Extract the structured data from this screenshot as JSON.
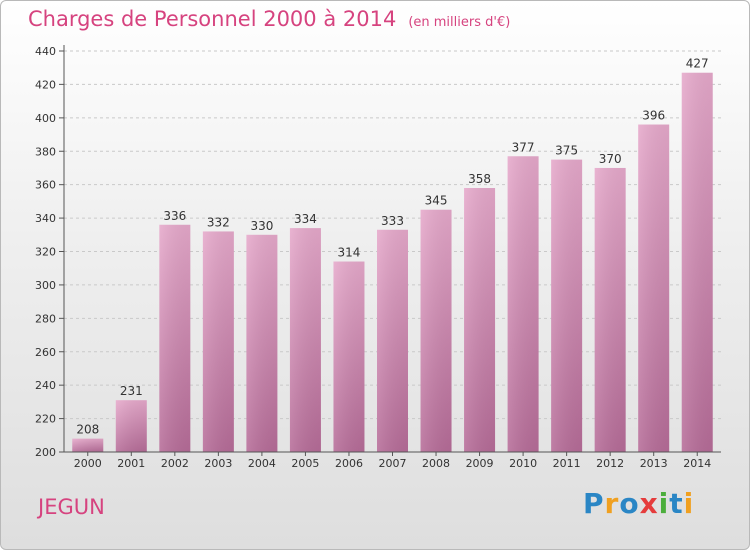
{
  "title": "Charges de Personnel 2000 à 2014",
  "unit": "(en milliers d'€)",
  "city": "JEGUN",
  "logo": {
    "text": "Proxiti",
    "letters": [
      "P",
      "r",
      "o",
      "x",
      "i",
      "t",
      "i"
    ],
    "colors": [
      "#2a86c5",
      "#f0a020",
      "#2a86c5",
      "#e53c3c",
      "#4cae3c",
      "#2a86c5",
      "#f0a020"
    ]
  },
  "colors": {
    "bar": "#d68fb7",
    "accent": "#d6437f"
  },
  "chart_data": {
    "type": "bar",
    "categories": [
      "2000",
      "2001",
      "2002",
      "2003",
      "2004",
      "2005",
      "2006",
      "2007",
      "2008",
      "2009",
      "2010",
      "2011",
      "2012",
      "2013",
      "2014"
    ],
    "values": [
      208,
      231,
      336,
      332,
      330,
      334,
      314,
      333,
      345,
      358,
      377,
      375,
      370,
      396,
      427
    ],
    "ylim": [
      200,
      440
    ],
    "yticks": [
      200,
      220,
      240,
      260,
      280,
      300,
      320,
      340,
      360,
      380,
      400,
      420,
      440
    ],
    "grid": true,
    "data_labels": true
  }
}
